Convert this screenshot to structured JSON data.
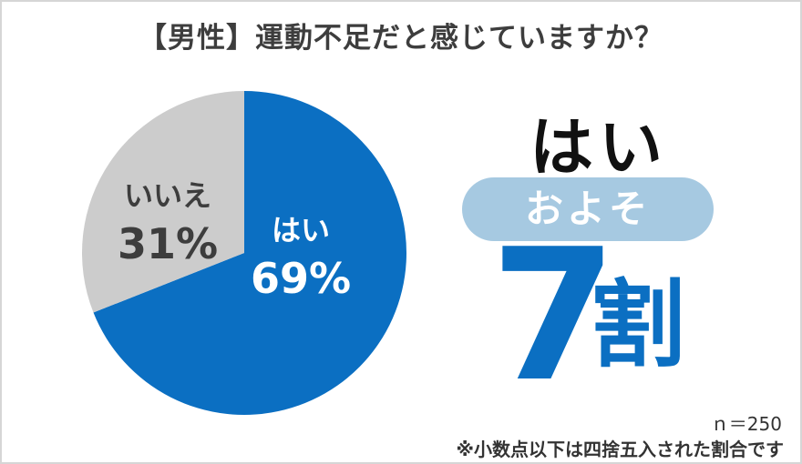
{
  "title": "【男性】運動不足だと感じていますか？",
  "chart_data": {
    "type": "pie",
    "categories": [
      "はい",
      "いいえ"
    ],
    "values": [
      69,
      31
    ],
    "labels": [
      "69%",
      "31%"
    ],
    "colors": [
      "#0b6fc2",
      "#cccccc"
    ],
    "label_colors": [
      "#ffffff",
      "#3d3d3d"
    ]
  },
  "summary": {
    "answer": "はい",
    "approx": "およそ",
    "value": "7",
    "unit": "割"
  },
  "footer": {
    "sample": "ｎ＝250",
    "note": "※小数点以下は四捨五入された割合です"
  }
}
